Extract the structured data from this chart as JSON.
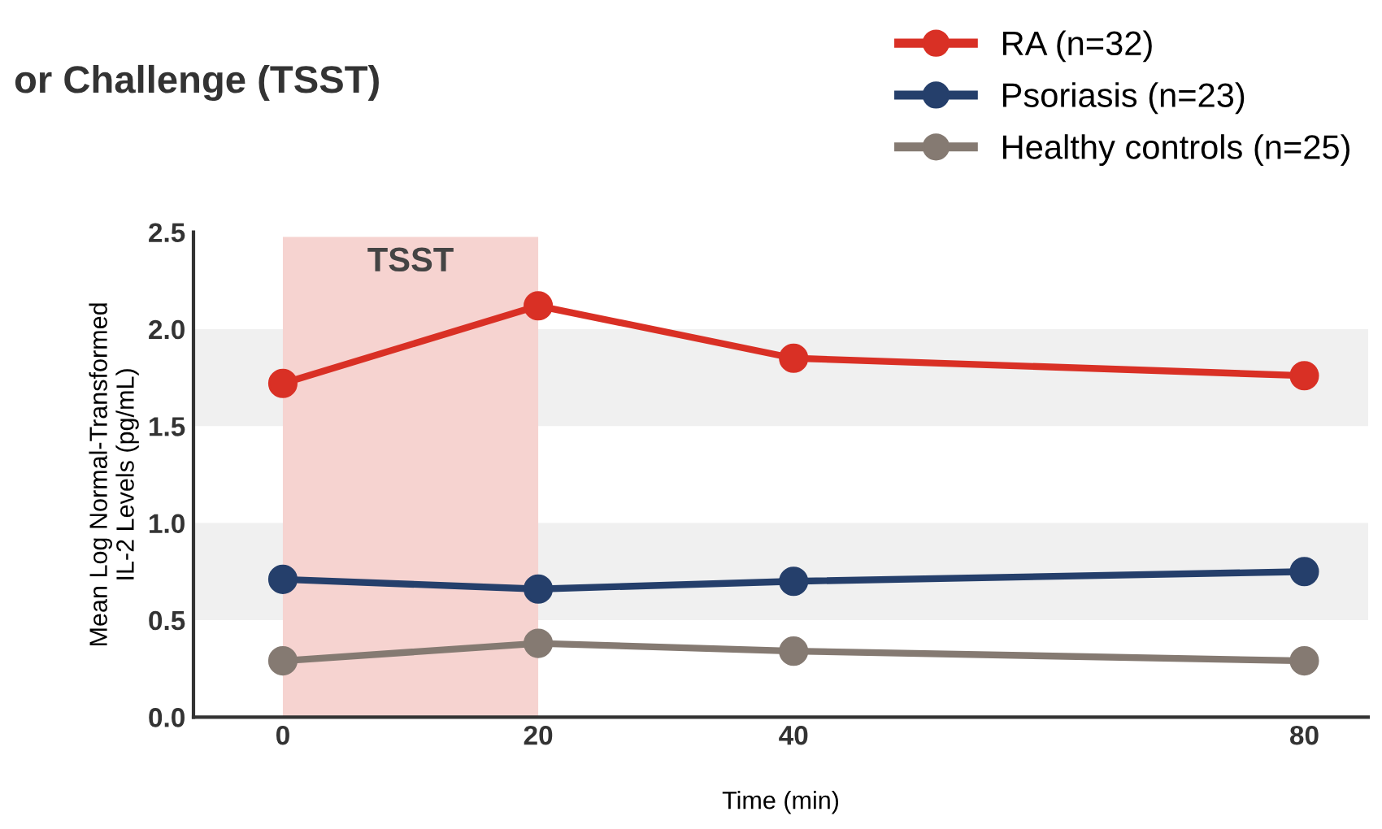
{
  "chart_data": {
    "type": "line",
    "title": "or Challenge (TSST)",
    "xlabel": "Time (min)",
    "ylabel": "Mean Log Normal-Transformed\nIL-2 Levels (pg/mL)",
    "x": [
      0,
      20,
      40,
      80
    ],
    "xlim": [
      -7,
      85
    ],
    "xticks": [
      0,
      20,
      40,
      80
    ],
    "ylim": [
      0,
      2.5
    ],
    "yticks": [
      {
        "value": 0,
        "label": "0.0"
      },
      {
        "value": 0.5,
        "label": "0.5"
      },
      {
        "value": 1,
        "label": "1.0"
      },
      {
        "value": 1.5,
        "label": "1.5"
      },
      {
        "value": 2,
        "label": "2.0"
      },
      {
        "value": 2.5,
        "label": "2.5"
      }
    ],
    "series": [
      {
        "name": "RA (n=32)",
        "color": "#d93025",
        "values": [
          1.72,
          2.12,
          1.85,
          1.76
        ]
      },
      {
        "name": "Psoriasis (n=23)",
        "color": "#253f6b",
        "values": [
          0.71,
          0.66,
          0.7,
          0.75
        ]
      },
      {
        "name": "Healthy controls (n=25)",
        "color": "#857a72",
        "values": [
          0.29,
          0.38,
          0.34,
          0.29
        ]
      }
    ],
    "bands": [
      {
        "axis": "y",
        "from": 1.5,
        "to": 2.0,
        "color": "#f0f0f0"
      },
      {
        "axis": "y",
        "from": 0.5,
        "to": 1.0,
        "color": "#f0f0f0"
      },
      {
        "axis": "x",
        "from": 0,
        "to": 20,
        "label": "TSST",
        "color": "#f6d3d0"
      }
    ],
    "marker": "circle",
    "line_style": "solid",
    "grid": false,
    "legend": "top right"
  }
}
